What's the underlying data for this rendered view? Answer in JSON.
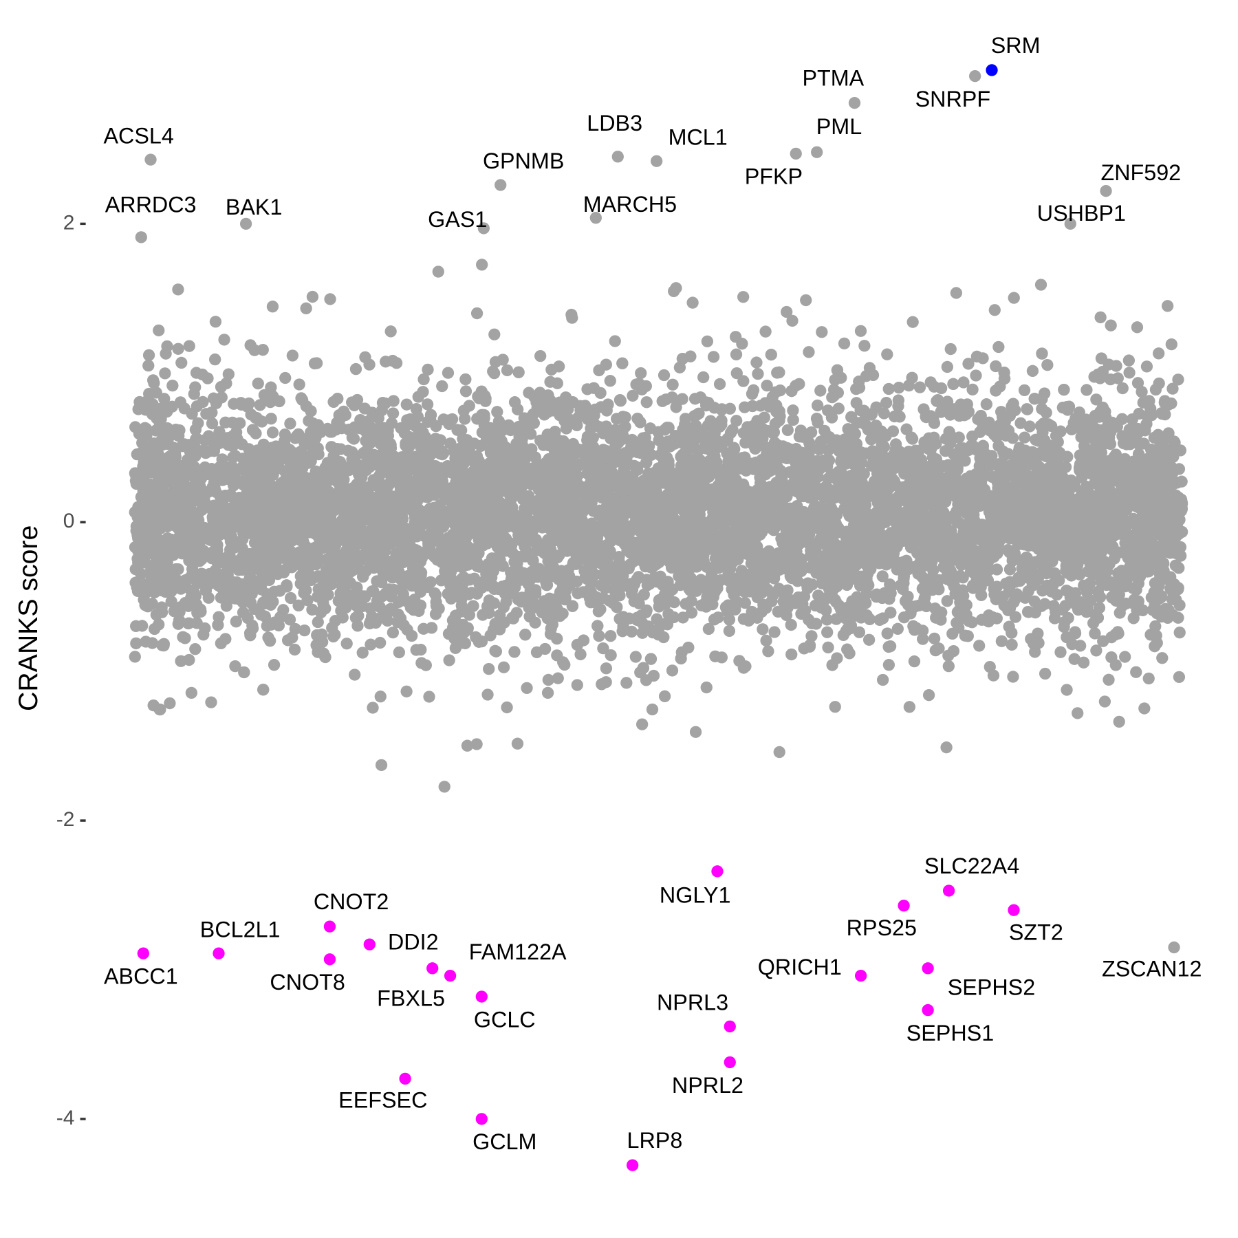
{
  "chart_data": {
    "type": "scatter",
    "title": "",
    "xlabel": "",
    "ylabel": "CRANKS score",
    "ylim": [
      -4.55,
      3.5
    ],
    "yticks": [
      2,
      0,
      -2,
      -4
    ],
    "ytick_labels": [
      "2",
      "0",
      "-2",
      "-4"
    ],
    "grid": false,
    "legend": "none",
    "colors": {
      "background_points": "#A3A3A3",
      "positive_hit": "#0000FF",
      "negative_hit": "#FF00FF",
      "labeled_gray": "#A3A3A3"
    },
    "labeled_points": [
      {
        "label": "SRM",
        "x": 81.8,
        "y": 3.03,
        "color": "#0000FF"
      },
      {
        "label": "SNRPF",
        "x": 80.2,
        "y": 2.99,
        "color": "#A3A3A3"
      },
      {
        "label": "PTMA",
        "x": 68.7,
        "y": 2.81,
        "color": "#A3A3A3"
      },
      {
        "label": "PML",
        "x": 65.1,
        "y": 2.48,
        "color": "#A3A3A3"
      },
      {
        "label": "PFKP",
        "x": 63.1,
        "y": 2.47,
        "color": "#A3A3A3"
      },
      {
        "label": "LDB3",
        "x": 46.1,
        "y": 2.45,
        "color": "#A3A3A3"
      },
      {
        "label": "MCL1",
        "x": 49.8,
        "y": 2.42,
        "color": "#A3A3A3"
      },
      {
        "label": "MARCH5",
        "x": 44.0,
        "y": 2.04,
        "color": "#A3A3A3"
      },
      {
        "label": "ACSL4",
        "x": 1.5,
        "y": 2.43,
        "color": "#A3A3A3"
      },
      {
        "label": "ARRDC3",
        "x": 0.6,
        "y": 1.91,
        "color": "#A3A3A3"
      },
      {
        "label": "BAK1",
        "x": 10.6,
        "y": 2.0,
        "color": "#A3A3A3"
      },
      {
        "label": "GPNMB",
        "x": 34.9,
        "y": 2.26,
        "color": "#A3A3A3"
      },
      {
        "label": "GAS1",
        "x": 33.3,
        "y": 1.97,
        "color": "#A3A3A3"
      },
      {
        "label": "ZNF592",
        "x": 92.7,
        "y": 2.22,
        "color": "#A3A3A3"
      },
      {
        "label": "USHBP1",
        "x": 89.3,
        "y": 2.0,
        "color": "#A3A3A3"
      },
      {
        "label": "ZSCAN12",
        "x": 99.2,
        "y": -2.85,
        "color": "#A3A3A3"
      },
      {
        "label": "NGLY1",
        "x": 55.6,
        "y": -2.34,
        "color": "#FF00FF"
      },
      {
        "label": "SLC22A4",
        "x": 77.7,
        "y": -2.47,
        "color": "#FF00FF"
      },
      {
        "label": "RPS25",
        "x": 73.4,
        "y": -2.57,
        "color": "#FF00FF"
      },
      {
        "label": "SZT2",
        "x": 83.9,
        "y": -2.6,
        "color": "#FF00FF"
      },
      {
        "label": "QRICH1",
        "x": 69.3,
        "y": -3.04,
        "color": "#FF00FF"
      },
      {
        "label": "SEPHS2",
        "x": 75.7,
        "y": -2.99,
        "color": "#FF00FF"
      },
      {
        "label": "SEPHS1",
        "x": 75.7,
        "y": -3.27,
        "color": "#FF00FF"
      },
      {
        "label": "NPRL3",
        "x": 56.8,
        "y": -3.38,
        "color": "#FF00FF"
      },
      {
        "label": "NPRL2",
        "x": 56.8,
        "y": -3.62,
        "color": "#FF00FF"
      },
      {
        "label": "LRP8",
        "x": 47.5,
        "y": -4.31,
        "color": "#FF00FF"
      },
      {
        "label": "GCLM",
        "x": 33.1,
        "y": -4.0,
        "color": "#FF00FF"
      },
      {
        "label": "GCLC",
        "x": 33.1,
        "y": -3.18,
        "color": "#FF00FF"
      },
      {
        "label": "EEFSEC",
        "x": 25.8,
        "y": -3.73,
        "color": "#FF00FF"
      },
      {
        "label": "FAM122A",
        "x": 30.1,
        "y": -3.04,
        "color": "#FF00FF"
      },
      {
        "label": "FBXL5",
        "x": 28.4,
        "y": -2.99,
        "color": "#FF00FF"
      },
      {
        "label": "DDI2",
        "x": 22.4,
        "y": -2.83,
        "color": "#FF00FF"
      },
      {
        "label": "CNOT2",
        "x": 18.6,
        "y": -2.71,
        "color": "#FF00FF"
      },
      {
        "label": "CNOT8",
        "x": 18.6,
        "y": -2.93,
        "color": "#FF00FF"
      },
      {
        "label": "BCL2L1",
        "x": 8.0,
        "y": -2.89,
        "color": "#FF00FF"
      },
      {
        "label": "ABCC1",
        "x": 0.8,
        "y": -2.89,
        "color": "#FF00FF"
      }
    ]
  }
}
